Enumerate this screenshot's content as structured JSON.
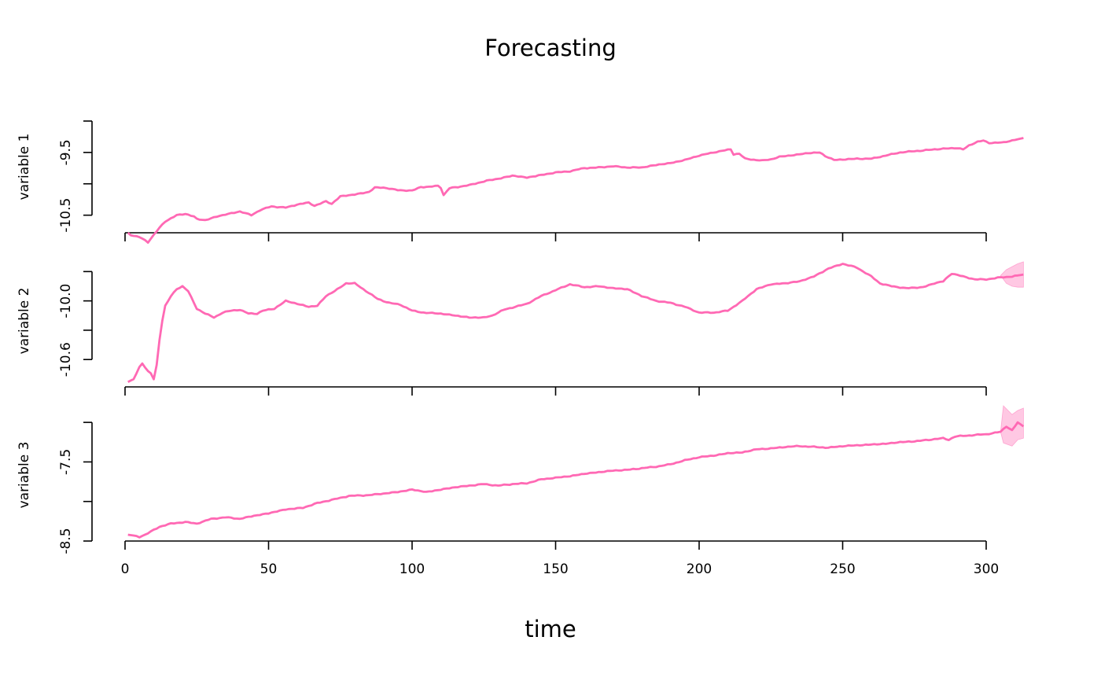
{
  "chart_data": {
    "type": "line",
    "title": "Forecasting",
    "xlabel": "time",
    "xlim": [
      0,
      313
    ],
    "line_color": "#ff69b4",
    "band_color": "#ffb6d9",
    "x_ticks": [
      0,
      50,
      100,
      150,
      200,
      250,
      300
    ],
    "x_tick_labels": [
      "0",
      "50",
      "100",
      "150",
      "200",
      "250",
      "300"
    ],
    "panels": [
      {
        "ylabel": "variable 1",
        "ylim": [
          -10.78,
          -8.65
        ],
        "y_ticks": [
          -10.5,
          -10.0,
          -9.5,
          -9.0
        ],
        "y_tick_labels": [
          "-10.5",
          "",
          "-9.5",
          ""
        ],
        "series_knots": [
          [
            1,
            -10.78
          ],
          [
            2,
            -10.82
          ],
          [
            5,
            -10.85
          ],
          [
            7,
            -10.9
          ],
          [
            8,
            -10.93
          ],
          [
            12,
            -10.7
          ],
          [
            14,
            -10.6
          ],
          [
            18,
            -10.5
          ],
          [
            21,
            -10.48
          ],
          [
            24,
            -10.52
          ],
          [
            25,
            -10.56
          ],
          [
            28,
            -10.58
          ],
          [
            32,
            -10.52
          ],
          [
            36,
            -10.48
          ],
          [
            40,
            -10.44
          ],
          [
            44,
            -10.5
          ],
          [
            47,
            -10.42
          ],
          [
            51,
            -10.36
          ],
          [
            56,
            -10.38
          ],
          [
            60,
            -10.33
          ],
          [
            64,
            -10.3
          ],
          [
            66,
            -10.35
          ],
          [
            70,
            -10.28
          ],
          [
            72,
            -10.32
          ],
          [
            75,
            -10.2
          ],
          [
            80,
            -10.17
          ],
          [
            85,
            -10.13
          ],
          [
            87,
            -10.06
          ],
          [
            90,
            -10.06
          ],
          [
            95,
            -10.1
          ],
          [
            100,
            -10.11
          ],
          [
            103,
            -10.05
          ],
          [
            106,
            -10.05
          ],
          [
            109,
            -10.03
          ],
          [
            110,
            -10.06
          ],
          [
            111,
            -10.18
          ],
          [
            113,
            -10.07
          ],
          [
            116,
            -10.05
          ],
          [
            120,
            -10.02
          ],
          [
            126,
            -9.95
          ],
          [
            130,
            -9.92
          ],
          [
            135,
            -9.87
          ],
          [
            140,
            -9.9
          ],
          [
            145,
            -9.86
          ],
          [
            150,
            -9.82
          ],
          [
            155,
            -9.8
          ],
          [
            160,
            -9.75
          ],
          [
            165,
            -9.74
          ],
          [
            170,
            -9.72
          ],
          [
            175,
            -9.74
          ],
          [
            180,
            -9.74
          ],
          [
            185,
            -9.7
          ],
          [
            190,
            -9.67
          ],
          [
            195,
            -9.62
          ],
          [
            200,
            -9.55
          ],
          [
            205,
            -9.5
          ],
          [
            211,
            -9.45
          ],
          [
            212,
            -9.53
          ],
          [
            214,
            -9.52
          ],
          [
            216,
            -9.6
          ],
          [
            220,
            -9.62
          ],
          [
            222,
            -9.63
          ],
          [
            225,
            -9.61
          ],
          [
            228,
            -9.57
          ],
          [
            235,
            -9.53
          ],
          [
            238,
            -9.51
          ],
          [
            242,
            -9.5
          ],
          [
            244,
            -9.56
          ],
          [
            247,
            -9.62
          ],
          [
            255,
            -9.6
          ],
          [
            260,
            -9.6
          ],
          [
            270,
            -9.5
          ],
          [
            280,
            -9.46
          ],
          [
            285,
            -9.44
          ],
          [
            290,
            -9.43
          ],
          [
            292,
            -9.45
          ],
          [
            294,
            -9.39
          ],
          [
            297,
            -9.33
          ],
          [
            299,
            -9.31
          ],
          [
            301,
            -9.35
          ],
          [
            306,
            -9.34
          ],
          [
            313,
            -9.27
          ]
        ],
        "forecast_band": null
      },
      {
        "ylabel": "variable 2",
        "ylim": [
          -10.88,
          -9.48
        ],
        "y_ticks": [
          -10.6,
          -10.3,
          -10.0,
          -9.7
        ],
        "y_tick_labels": [
          "-10.6",
          "",
          "-10.0",
          ""
        ],
        "series_knots": [
          [
            1,
            -10.83
          ],
          [
            3,
            -10.8
          ],
          [
            5,
            -10.68
          ],
          [
            6,
            -10.64
          ],
          [
            8,
            -10.72
          ],
          [
            9,
            -10.74
          ],
          [
            10,
            -10.8
          ],
          [
            11,
            -10.66
          ],
          [
            12,
            -10.4
          ],
          [
            13,
            -10.2
          ],
          [
            14,
            -10.05
          ],
          [
            16,
            -9.95
          ],
          [
            18,
            -9.88
          ],
          [
            20,
            -9.85
          ],
          [
            22,
            -9.9
          ],
          [
            25,
            -10.08
          ],
          [
            28,
            -10.13
          ],
          [
            31,
            -10.17
          ],
          [
            34,
            -10.12
          ],
          [
            37,
            -10.1
          ],
          [
            40,
            -10.09
          ],
          [
            43,
            -10.13
          ],
          [
            46,
            -10.13
          ],
          [
            48,
            -10.1
          ],
          [
            52,
            -10.08
          ],
          [
            56,
            -10.0
          ],
          [
            60,
            -10.03
          ],
          [
            64,
            -10.06
          ],
          [
            67,
            -10.05
          ],
          [
            70,
            -9.95
          ],
          [
            73,
            -9.9
          ],
          [
            77,
            -9.82
          ],
          [
            80,
            -9.82
          ],
          [
            84,
            -9.9
          ],
          [
            88,
            -9.98
          ],
          [
            92,
            -10.02
          ],
          [
            96,
            -10.04
          ],
          [
            100,
            -10.1
          ],
          [
            104,
            -10.12
          ],
          [
            110,
            -10.13
          ],
          [
            115,
            -10.15
          ],
          [
            120,
            -10.17
          ],
          [
            125,
            -10.17
          ],
          [
            128,
            -10.15
          ],
          [
            132,
            -10.09
          ],
          [
            136,
            -10.06
          ],
          [
            140,
            -10.03
          ],
          [
            145,
            -9.95
          ],
          [
            150,
            -9.89
          ],
          [
            155,
            -9.83
          ],
          [
            160,
            -9.86
          ],
          [
            165,
            -9.85
          ],
          [
            170,
            -9.87
          ],
          [
            175,
            -9.88
          ],
          [
            180,
            -9.95
          ],
          [
            185,
            -10.0
          ],
          [
            190,
            -10.02
          ],
          [
            195,
            -10.06
          ],
          [
            200,
            -10.12
          ],
          [
            205,
            -10.12
          ],
          [
            210,
            -10.1
          ],
          [
            215,
            -10.0
          ],
          [
            220,
            -9.88
          ],
          [
            225,
            -9.83
          ],
          [
            230,
            -9.82
          ],
          [
            235,
            -9.8
          ],
          [
            240,
            -9.75
          ],
          [
            245,
            -9.67
          ],
          [
            250,
            -9.62
          ],
          [
            255,
            -9.66
          ],
          [
            260,
            -9.75
          ],
          [
            263,
            -9.82
          ],
          [
            267,
            -9.85
          ],
          [
            272,
            -9.87
          ],
          [
            278,
            -9.86
          ],
          [
            282,
            -9.82
          ],
          [
            285,
            -9.8
          ],
          [
            288,
            -9.72
          ],
          [
            292,
            -9.75
          ],
          [
            296,
            -9.78
          ],
          [
            300,
            -9.78
          ],
          [
            305,
            -9.76
          ],
          [
            309,
            -9.75
          ],
          [
            313,
            -9.73
          ]
        ],
        "forecast_band": [
          [
            305,
            -9.74,
            -9.74
          ],
          [
            307,
            -9.68,
            -9.82
          ],
          [
            309,
            -9.65,
            -9.85
          ],
          [
            311,
            -9.62,
            -9.86
          ],
          [
            313,
            -9.6,
            -9.86
          ]
        ]
      },
      {
        "ylabel": "variable 3",
        "ylim": [
          -8.5,
          -6.79
        ],
        "y_ticks": [
          -8.5,
          -8.0,
          -7.5,
          -7.0
        ],
        "y_tick_labels": [
          "-8.5",
          "",
          "-7.5",
          ""
        ],
        "series_knots": [
          [
            1,
            -8.42
          ],
          [
            3,
            -8.43
          ],
          [
            5,
            -8.45
          ],
          [
            7,
            -8.42
          ],
          [
            9,
            -8.38
          ],
          [
            12,
            -8.32
          ],
          [
            16,
            -8.28
          ],
          [
            21,
            -8.26
          ],
          [
            25,
            -8.28
          ],
          [
            30,
            -8.22
          ],
          [
            35,
            -8.2
          ],
          [
            40,
            -8.22
          ],
          [
            45,
            -8.18
          ],
          [
            50,
            -8.15
          ],
          [
            56,
            -8.1
          ],
          [
            62,
            -8.08
          ],
          [
            67,
            -8.02
          ],
          [
            72,
            -7.98
          ],
          [
            78,
            -7.93
          ],
          [
            85,
            -7.92
          ],
          [
            90,
            -7.9
          ],
          [
            95,
            -7.88
          ],
          [
            100,
            -7.85
          ],
          [
            105,
            -7.88
          ],
          [
            110,
            -7.85
          ],
          [
            115,
            -7.82
          ],
          [
            120,
            -7.8
          ],
          [
            125,
            -7.78
          ],
          [
            130,
            -7.8
          ],
          [
            135,
            -7.78
          ],
          [
            140,
            -7.77
          ],
          [
            145,
            -7.72
          ],
          [
            150,
            -7.7
          ],
          [
            155,
            -7.68
          ],
          [
            160,
            -7.65
          ],
          [
            165,
            -7.63
          ],
          [
            170,
            -7.61
          ],
          [
            175,
            -7.6
          ],
          [
            180,
            -7.58
          ],
          [
            185,
            -7.56
          ],
          [
            190,
            -7.53
          ],
          [
            195,
            -7.48
          ],
          [
            200,
            -7.44
          ],
          [
            205,
            -7.42
          ],
          [
            210,
            -7.39
          ],
          [
            215,
            -7.38
          ],
          [
            220,
            -7.34
          ],
          [
            225,
            -7.33
          ],
          [
            230,
            -7.31
          ],
          [
            235,
            -7.3
          ],
          [
            240,
            -7.31
          ],
          [
            245,
            -7.32
          ],
          [
            250,
            -7.3
          ],
          [
            255,
            -7.29
          ],
          [
            260,
            -7.28
          ],
          [
            265,
            -7.27
          ],
          [
            270,
            -7.25
          ],
          [
            275,
            -7.24
          ],
          [
            280,
            -7.22
          ],
          [
            285,
            -7.2
          ],
          [
            287,
            -7.22
          ],
          [
            289,
            -7.18
          ],
          [
            292,
            -7.17
          ],
          [
            296,
            -7.16
          ],
          [
            300,
            -7.15
          ],
          [
            305,
            -7.12
          ],
          [
            307,
            -7.05
          ],
          [
            309,
            -7.1
          ],
          [
            311,
            -7.0
          ],
          [
            313,
            -7.05
          ]
        ],
        "forecast_band": [
          [
            305,
            -7.12,
            -7.12
          ],
          [
            306,
            -6.79,
            -7.26
          ],
          [
            309,
            -6.9,
            -7.3
          ],
          [
            311,
            -6.85,
            -7.22
          ],
          [
            313,
            -6.82,
            -7.2
          ]
        ]
      }
    ]
  }
}
